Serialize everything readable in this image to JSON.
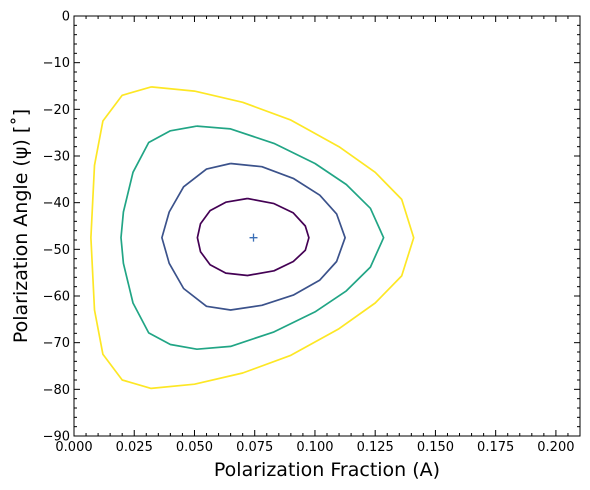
{
  "chart_data": {
    "type": "line",
    "title": "",
    "xlabel": "Polarization Fraction (A)",
    "ylabel": "Polarization Angle (ψ) [˚]",
    "xlim": [
      0.0,
      0.21
    ],
    "ylim": [
      -90,
      0
    ],
    "xticks": [
      0.0,
      0.025,
      0.05,
      0.075,
      0.1,
      0.125,
      0.15,
      0.175,
      0.2
    ],
    "xtick_labels": [
      "0.000",
      "0.025",
      "0.050",
      "0.075",
      "0.100",
      "0.125",
      "0.150",
      "0.175",
      "0.200"
    ],
    "yticks": [
      0,
      -10,
      -20,
      -30,
      -40,
      -50,
      -60,
      -70,
      -80,
      -90
    ],
    "ytick_labels": [
      "0",
      "−10",
      "−20",
      "−30",
      "−40",
      "−50",
      "−60",
      "−70",
      "−80",
      "−90"
    ],
    "grid": false,
    "legend": "none",
    "center_marker": {
      "x": 0.0745,
      "y": -47.5,
      "color": "#3b6fb6"
    },
    "contours": [
      {
        "color": "#440154",
        "points": [
          [
            0.072,
            -39.1
          ],
          [
            0.083,
            -40.2
          ],
          [
            0.091,
            -42.2
          ],
          [
            0.096,
            -45.0
          ],
          [
            0.0975,
            -47.5
          ],
          [
            0.096,
            -50.2
          ],
          [
            0.091,
            -52.6
          ],
          [
            0.083,
            -54.6
          ],
          [
            0.072,
            -55.6
          ],
          [
            0.063,
            -55.1
          ],
          [
            0.0565,
            -53.3
          ],
          [
            0.0525,
            -50.5
          ],
          [
            0.0512,
            -47.5
          ],
          [
            0.0525,
            -44.5
          ],
          [
            0.0565,
            -41.7
          ],
          [
            0.063,
            -39.9
          ],
          [
            0.072,
            -39.1
          ]
        ]
      },
      {
        "color": "#3b528b",
        "points": [
          [
            0.065,
            -31.6
          ],
          [
            0.078,
            -32.3
          ],
          [
            0.091,
            -34.8
          ],
          [
            0.102,
            -38.4
          ],
          [
            0.109,
            -42.4
          ],
          [
            0.1125,
            -47.5
          ],
          [
            0.109,
            -52.6
          ],
          [
            0.102,
            -56.6
          ],
          [
            0.091,
            -59.8
          ],
          [
            0.078,
            -62.0
          ],
          [
            0.065,
            -63.0
          ],
          [
            0.055,
            -62.2
          ],
          [
            0.0455,
            -58.4
          ],
          [
            0.0395,
            -53.0
          ],
          [
            0.0365,
            -47.5
          ],
          [
            0.0395,
            -42.0
          ],
          [
            0.0455,
            -36.6
          ],
          [
            0.055,
            -32.8
          ],
          [
            0.065,
            -31.6
          ]
        ]
      },
      {
        "color": "#21a585",
        "points": [
          [
            0.051,
            -23.6
          ],
          [
            0.065,
            -24.2
          ],
          [
            0.083,
            -27.3
          ],
          [
            0.1,
            -31.6
          ],
          [
            0.113,
            -36.1
          ],
          [
            0.123,
            -41.2
          ],
          [
            0.1285,
            -47.5
          ],
          [
            0.123,
            -53.8
          ],
          [
            0.113,
            -58.9
          ],
          [
            0.1,
            -63.4
          ],
          [
            0.083,
            -67.7
          ],
          [
            0.065,
            -70.8
          ],
          [
            0.051,
            -71.4
          ],
          [
            0.04,
            -70.4
          ],
          [
            0.031,
            -67.9
          ],
          [
            0.0245,
            -61.5
          ],
          [
            0.0205,
            -53.0
          ],
          [
            0.0195,
            -47.5
          ],
          [
            0.0205,
            -42.0
          ],
          [
            0.0245,
            -33.5
          ],
          [
            0.031,
            -27.1
          ],
          [
            0.04,
            -24.6
          ],
          [
            0.051,
            -23.6
          ]
        ]
      },
      {
        "color": "#fde725",
        "points": [
          [
            0.032,
            -15.2
          ],
          [
            0.05,
            -16.1
          ],
          [
            0.07,
            -18.5
          ],
          [
            0.09,
            -22.3
          ],
          [
            0.11,
            -28.0
          ],
          [
            0.125,
            -33.5
          ],
          [
            0.136,
            -39.3
          ],
          [
            0.141,
            -47.5
          ],
          [
            0.136,
            -55.7
          ],
          [
            0.125,
            -61.5
          ],
          [
            0.11,
            -67.0
          ],
          [
            0.09,
            -72.7
          ],
          [
            0.07,
            -76.5
          ],
          [
            0.05,
            -78.9
          ],
          [
            0.032,
            -79.8
          ],
          [
            0.02,
            -78.0
          ],
          [
            0.012,
            -72.5
          ],
          [
            0.0085,
            -63.0
          ],
          [
            0.007,
            -47.5
          ],
          [
            0.0085,
            -32.0
          ],
          [
            0.012,
            -22.5
          ],
          [
            0.02,
            -17.0
          ],
          [
            0.032,
            -15.2
          ]
        ]
      }
    ]
  }
}
